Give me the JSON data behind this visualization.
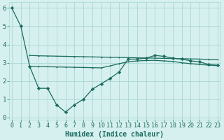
{
  "line1_x": [
    0,
    1,
    2,
    3,
    4,
    5,
    6,
    7,
    8,
    9,
    10,
    11,
    12,
    13,
    14,
    15,
    16,
    17,
    18,
    19,
    20,
    21,
    22,
    23
  ],
  "line1_y": [
    6.0,
    5.0,
    2.8,
    1.6,
    1.6,
    0.7,
    0.3,
    0.7,
    1.0,
    1.55,
    1.85,
    2.15,
    2.5,
    3.2,
    3.2,
    3.25,
    3.4,
    3.35,
    3.25,
    3.2,
    3.1,
    3.05,
    2.9,
    2.87
  ],
  "line2_x": [
    2,
    3,
    4,
    5,
    6,
    7,
    8,
    9,
    10,
    11,
    12,
    13,
    14,
    15,
    16,
    17,
    18,
    19,
    20,
    21,
    22,
    23
  ],
  "line2_y": [
    3.4,
    3.38,
    3.37,
    3.36,
    3.35,
    3.34,
    3.33,
    3.32,
    3.31,
    3.3,
    3.29,
    3.28,
    3.27,
    3.26,
    3.25,
    3.24,
    3.23,
    3.22,
    3.21,
    3.2,
    3.18,
    3.16
  ],
  "line3_x": [
    2,
    3,
    4,
    5,
    6,
    7,
    8,
    9,
    10,
    11,
    12,
    13,
    14,
    15,
    16,
    17,
    18,
    19,
    20,
    21,
    22,
    23
  ],
  "line3_y": [
    2.8,
    2.79,
    2.78,
    2.77,
    2.76,
    2.75,
    2.74,
    2.73,
    2.72,
    2.83,
    2.95,
    3.05,
    3.1,
    3.12,
    3.13,
    3.1,
    3.07,
    3.0,
    2.95,
    2.9,
    2.87,
    2.84
  ],
  "line_color": "#1a6b5e",
  "bg_color": "#d6f0ef",
  "grid_color": "#a8d8d4",
  "xlabel": "Humidex (Indice chaleur)",
  "xlabel_fontsize": 7,
  "xticks": [
    0,
    1,
    2,
    3,
    4,
    5,
    6,
    7,
    8,
    9,
    10,
    11,
    12,
    13,
    14,
    15,
    16,
    17,
    18,
    19,
    20,
    21,
    22,
    23
  ],
  "yticks": [
    0,
    1,
    2,
    3,
    4,
    5,
    6
  ],
  "xlim": [
    -0.3,
    23.3
  ],
  "ylim": [
    -0.1,
    6.3
  ],
  "tick_fontsize": 6
}
